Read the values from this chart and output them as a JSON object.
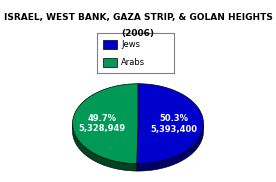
{
  "title_line1": "ISRAEL, WEST BANK, GAZA STRIP, & GOLAN HEIGHTS",
  "title_line2": "(2006)",
  "slices": [
    {
      "label": "Jews",
      "value": 5393400,
      "pct": 50.3,
      "color": "#0000CC",
      "dark_color": "#000066"
    },
    {
      "label": "Arabs",
      "value": 5328949,
      "pct": 49.7,
      "color": "#009955",
      "dark_color": "#004422"
    }
  ],
  "background_color": "#FFFFFF",
  "title_fontsize": 6.5,
  "legend_fontsize": 6.0,
  "label_fontsize": 6.0,
  "startangle": 90
}
